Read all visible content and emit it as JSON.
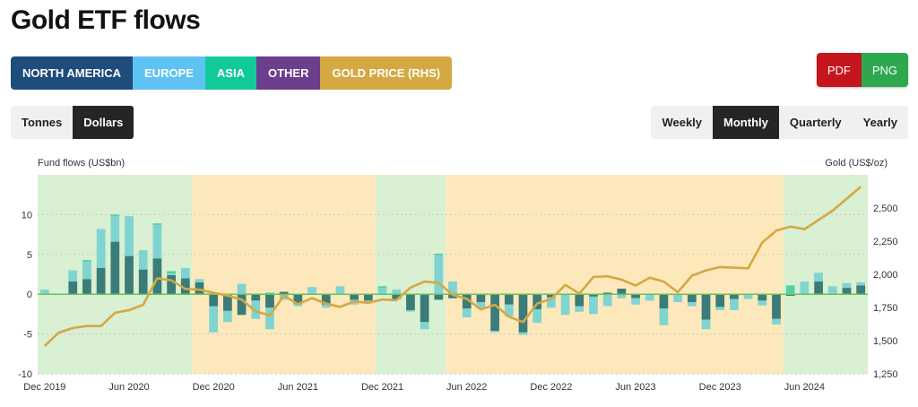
{
  "page": {
    "title": "Gold ETF flows"
  },
  "legend": [
    {
      "label": "NORTH AMERICA",
      "color": "#1e4c7d"
    },
    {
      "label": "EUROPE",
      "color": "#5ec3f2"
    },
    {
      "label": "ASIA",
      "color": "#12c99a"
    },
    {
      "label": "OTHER",
      "color": "#6b3f8c"
    },
    {
      "label": "GOLD PRICE (RHS)",
      "color": "#d4a843"
    }
  ],
  "export": {
    "pdf": "PDF",
    "png": "PNG",
    "pdf_color": "#c4161c",
    "png_color": "#2ea84f"
  },
  "units_toggle": {
    "options": [
      "Tonnes",
      "Dollars"
    ],
    "active": "Dollars"
  },
  "period_toggle": {
    "options": [
      "Weekly",
      "Monthly",
      "Quarterly",
      "Yearly"
    ],
    "active": "Monthly"
  },
  "chart_data": {
    "type": "bar",
    "ylabel": "Fund flows (US$bn)",
    "y2label": "Gold (US$/oz)",
    "ylim": [
      -10,
      15
    ],
    "y2lim": [
      1250,
      2750
    ],
    "yticks": [
      -10,
      -5,
      0,
      5,
      10
    ],
    "y2ticks": [
      {
        "v": 1250,
        "t": "1,250"
      },
      {
        "v": 1500,
        "t": "1,500"
      },
      {
        "v": 1750,
        "t": "1,750"
      },
      {
        "v": 2000,
        "t": "2,000"
      },
      {
        "v": 2250,
        "t": "2,250"
      },
      {
        "v": 2500,
        "t": "2,500"
      }
    ],
    "months": [
      "Dec 2019",
      "Jan 2020",
      "Feb 2020",
      "Mar 2020",
      "Apr 2020",
      "May 2020",
      "Jun 2020",
      "Jul 2020",
      "Aug 2020",
      "Sep 2020",
      "Oct 2020",
      "Nov 2020",
      "Dec 2020",
      "Jan 2021",
      "Feb 2021",
      "Mar 2021",
      "Apr 2021",
      "May 2021",
      "Jun 2021",
      "Jul 2021",
      "Aug 2021",
      "Sep 2021",
      "Oct 2021",
      "Nov 2021",
      "Dec 2021",
      "Jan 2022",
      "Feb 2022",
      "Mar 2022",
      "Apr 2022",
      "May 2022",
      "Jun 2022",
      "Jul 2022",
      "Aug 2022",
      "Sep 2022",
      "Oct 2022",
      "Nov 2022",
      "Dec 2022",
      "Jan 2023",
      "Feb 2023",
      "Mar 2023",
      "Apr 2023",
      "May 2023",
      "Jun 2023",
      "Jul 2023",
      "Aug 2023",
      "Sep 2023",
      "Oct 2023",
      "Nov 2023",
      "Dec 2023",
      "Jan 2024",
      "Feb 2024",
      "Mar 2024",
      "Apr 2024",
      "May 2024",
      "Jun 2024",
      "Jul 2024",
      "Aug 2024",
      "Sep 2024",
      "Oct 2024"
    ],
    "xtick_labels": [
      {
        "label": "Dec 2019",
        "index": 0
      },
      {
        "label": "Jun 2020",
        "index": 6
      },
      {
        "label": "Dec 2020",
        "index": 12
      },
      {
        "label": "Jun 2021",
        "index": 18
      },
      {
        "label": "Dec 2021",
        "index": 24
      },
      {
        "label": "Jun 2022",
        "index": 30
      },
      {
        "label": "Dec 2022",
        "index": 36
      },
      {
        "label": "Jun 2023",
        "index": 42
      },
      {
        "label": "Dec 2023",
        "index": 48
      },
      {
        "label": "Jun 2024",
        "index": 54
      }
    ],
    "regimes": [
      {
        "from": "Dec 2019",
        "to": "Oct 2020",
        "kind": "inflow",
        "color": "#d9f0d2"
      },
      {
        "from": "Nov 2020",
        "to": "Nov 2021",
        "kind": "outflow",
        "color": "#fde8bc"
      },
      {
        "from": "Dec 2021",
        "to": "Apr 2022",
        "kind": "inflow",
        "color": "#d9f0d2"
      },
      {
        "from": "May 2022",
        "to": "Apr 2024",
        "kind": "outflow",
        "color": "#fde8bc"
      },
      {
        "from": "May 2024",
        "to": "Oct 2024",
        "kind": "inflow",
        "color": "#d9f0d2"
      }
    ],
    "series": [
      {
        "name": "NORTH AMERICA",
        "color": "#3b7b78",
        "values": [
          0.0,
          0.0,
          1.6,
          1.9,
          3.3,
          6.6,
          4.8,
          3.1,
          4.5,
          2.4,
          2.0,
          1.5,
          -1.5,
          -2.1,
          -2.6,
          -0.8,
          -1.7,
          0.3,
          -1.2,
          0.0,
          -1.3,
          0.0,
          -0.7,
          -0.8,
          0.0,
          -0.6,
          -2.0,
          -3.5,
          -0.7,
          -0.5,
          -1.8,
          -1.0,
          -4.6,
          -1.3,
          -4.8,
          -1.9,
          -0.4,
          0.0,
          -1.5,
          -0.3,
          0.2,
          0.7,
          -0.5,
          0.0,
          -1.8,
          0.0,
          -1.0,
          -3.2,
          -1.6,
          -0.6,
          0.0,
          -0.8,
          -3.1,
          -0.2,
          0.0,
          1.6,
          0.0,
          0.8,
          1.1
        ]
      },
      {
        "name": "EUROPE",
        "color": "#7fd4d1",
        "values": [
          0.6,
          0.0,
          1.4,
          2.2,
          4.9,
          3.2,
          5.0,
          2.3,
          4.2,
          0.2,
          1.3,
          0.4,
          -3.3,
          -1.4,
          1.3,
          -2.3,
          -2.7,
          -0.7,
          -0.3,
          0.9,
          -0.4,
          1.0,
          -0.6,
          -0.2,
          0.8,
          0.6,
          -0.2,
          -0.9,
          4.9,
          1.6,
          -1.1,
          -0.8,
          -0.2,
          -1.5,
          -0.3,
          -1.7,
          -1.3,
          -2.6,
          -0.7,
          -2.2,
          -1.5,
          -0.5,
          -0.8,
          -0.8,
          -2.1,
          -1.0,
          -0.5,
          -1.2,
          -0.4,
          -1.4,
          -0.6,
          -0.6,
          -0.7,
          0.1,
          1.6,
          1.1,
          1.0,
          0.6,
          0.4
        ]
      },
      {
        "name": "ASIA",
        "color": "#52d1a3",
        "values": [
          0.0,
          0.0,
          0.0,
          0.2,
          0.0,
          0.2,
          0.0,
          0.1,
          0.2,
          0.3,
          0.0,
          0.0,
          0.0,
          0.0,
          0.0,
          0.0,
          0.2,
          0.0,
          0.0,
          0.0,
          0.0,
          0.0,
          0.0,
          0.0,
          0.2,
          0.0,
          0.0,
          0.0,
          0.2,
          0.0,
          0.0,
          0.0,
          0.0,
          0.0,
          0.0,
          0.0,
          0.0,
          0.0,
          0.0,
          0.0,
          0.0,
          0.0,
          0.0,
          0.0,
          0.0,
          0.0,
          0.0,
          0.0,
          0.0,
          0.0,
          0.0,
          0.0,
          0.0,
          1.0,
          0.0,
          0.0,
          0.0,
          0.0,
          0.0
        ]
      },
      {
        "name": "OTHER",
        "color": "#6b3f8c",
        "values": [
          0.0,
          0.0,
          0.0,
          0.0,
          0.0,
          0.0,
          0.0,
          0.0,
          0.0,
          0.0,
          0.0,
          0.0,
          0.0,
          0.0,
          0.0,
          0.0,
          0.0,
          0.0,
          0.0,
          0.0,
          0.0,
          0.0,
          0.0,
          0.0,
          0.0,
          0.0,
          0.0,
          0.0,
          0.0,
          0.0,
          0.0,
          0.0,
          0.0,
          0.0,
          0.0,
          0.0,
          0.0,
          0.0,
          0.0,
          0.0,
          0.0,
          0.0,
          0.0,
          0.0,
          0.0,
          0.0,
          0.0,
          0.0,
          0.0,
          0.0,
          0.0,
          0.0,
          0.0,
          0.0,
          0.0,
          0.0,
          0.0,
          0.0,
          0.0
        ]
      },
      {
        "name": "GOLD PRICE (RHS)",
        "color": "#d4a843",
        "axis": "right",
        "values": [
          1460,
          1560,
          1595,
          1610,
          1610,
          1710,
          1730,
          1770,
          1970,
          1955,
          1890,
          1885,
          1860,
          1840,
          1810,
          1720,
          1690,
          1840,
          1775,
          1820,
          1780,
          1755,
          1795,
          1785,
          1810,
          1805,
          1900,
          1945,
          1935,
          1845,
          1815,
          1735,
          1770,
          1680,
          1640,
          1780,
          1815,
          1920,
          1855,
          1980,
          1985,
          1960,
          1915,
          1975,
          1945,
          1865,
          1990,
          2030,
          2055,
          2050,
          2045,
          2240,
          2330,
          2360,
          2340,
          2410,
          2480,
          2570,
          2660
        ]
      }
    ]
  }
}
